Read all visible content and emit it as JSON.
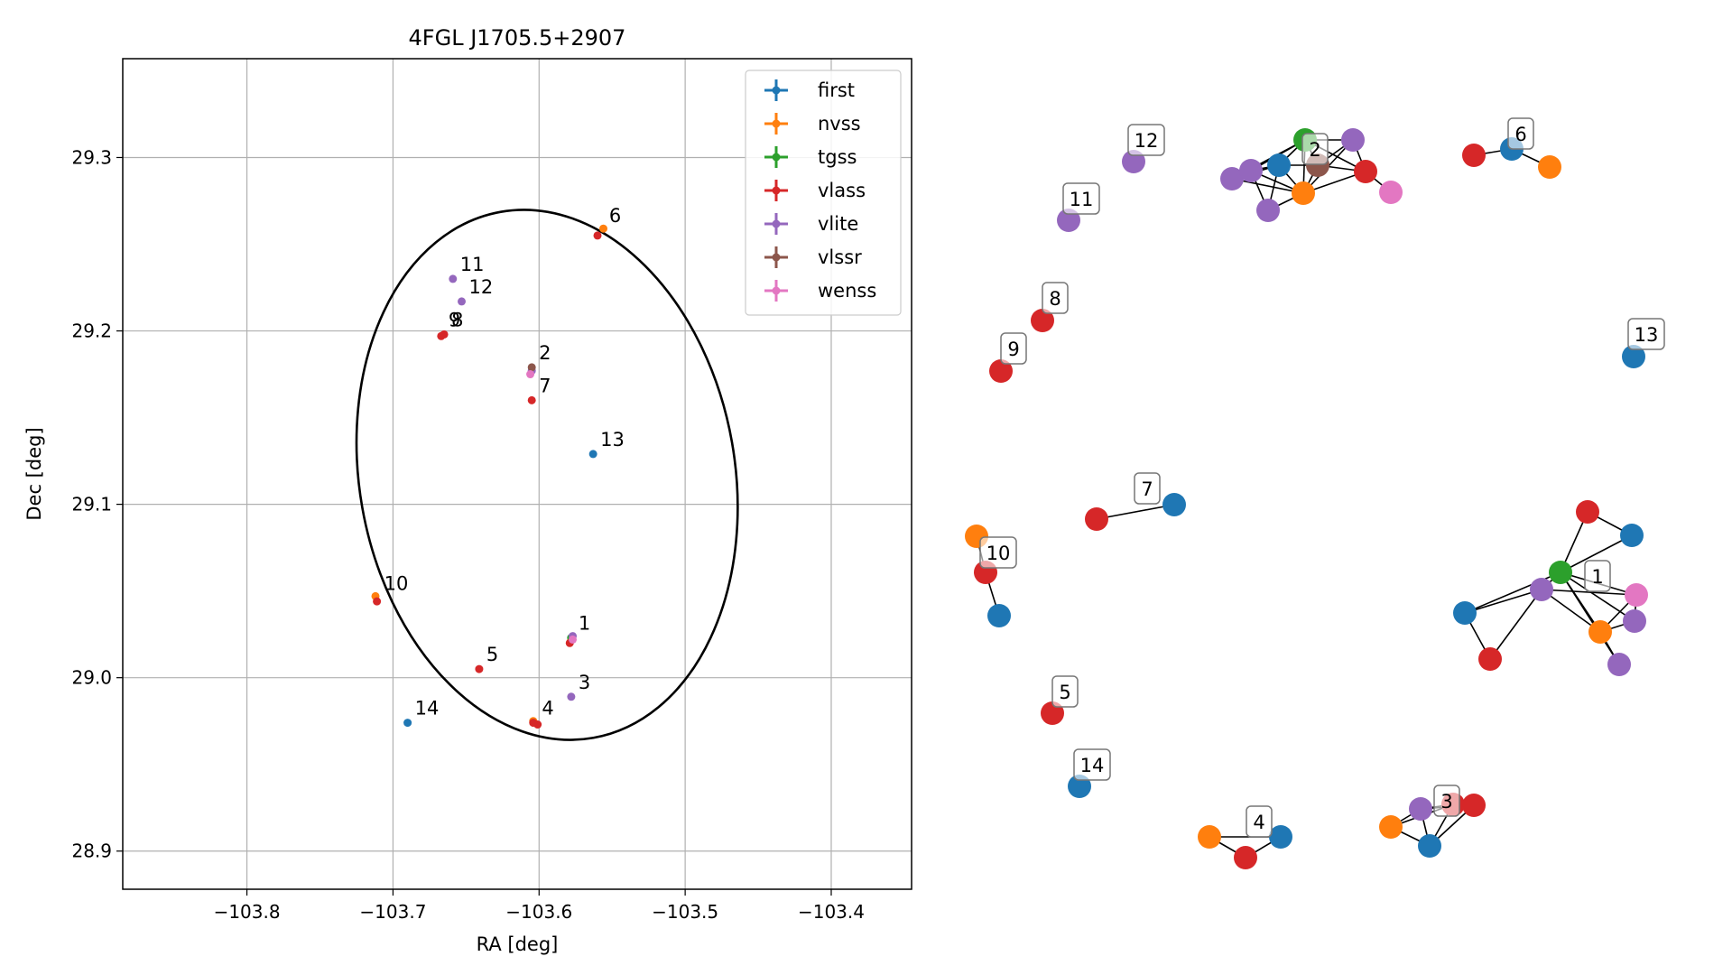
{
  "chart_data": [
    {
      "type": "scatter",
      "title": "4FGL J1705.5+2907",
      "xlabel": "RA [deg]",
      "ylabel": "Dec [deg]",
      "xlim": [
        -103.885,
        -103.345
      ],
      "ylim": [
        28.878,
        29.357
      ],
      "xticks": [
        -103.8,
        -103.7,
        -103.6,
        -103.5,
        -103.4
      ],
      "xtick_labels": [
        "−103.8",
        "−103.7",
        "−103.6",
        "−103.5",
        "−103.4"
      ],
      "yticks": [
        28.9,
        29.0,
        29.1,
        29.2,
        29.3
      ],
      "ytick_labels": [
        "28.9",
        "29.0",
        "29.1",
        "29.2",
        "29.3"
      ],
      "grid": true,
      "legend_position": "top-right",
      "colors": {
        "first": "#1f77b4",
        "nvss": "#ff7f0e",
        "tgss": "#2ca02c",
        "vlass": "#d62728",
        "vlite": "#9467bd",
        "vlssr": "#8c564b",
        "wenss": "#e377c2"
      },
      "series": [
        {
          "name": "first",
          "points": [
            [
              -103.563,
              29.129
            ],
            [
              -103.69,
              28.974
            ],
            [
              -103.578,
              29.023
            ]
          ]
        },
        {
          "name": "nvss",
          "points": [
            [
              -103.556,
              29.259
            ],
            [
              -103.712,
              29.047
            ],
            [
              -103.604,
              28.975
            ],
            [
              -103.578,
              29.022
            ]
          ]
        },
        {
          "name": "tgss",
          "points": [
            [
              -103.578,
              29.023
            ]
          ]
        },
        {
          "name": "vlass",
          "points": [
            [
              -103.56,
              29.255
            ],
            [
              -103.605,
              29.16
            ],
            [
              -103.665,
              29.198
            ],
            [
              -103.667,
              29.197
            ],
            [
              -103.711,
              29.044
            ],
            [
              -103.641,
              29.005
            ],
            [
              -103.579,
              29.02
            ],
            [
              -103.601,
              28.973
            ],
            [
              -103.604,
              28.974
            ]
          ]
        },
        {
          "name": "vlite",
          "points": [
            [
              -103.659,
              29.23
            ],
            [
              -103.653,
              29.217
            ],
            [
              -103.605,
              29.177
            ],
            [
              -103.578,
              28.989
            ],
            [
              -103.577,
              29.024
            ]
          ]
        },
        {
          "name": "vlssr",
          "points": [
            [
              -103.605,
              29.179
            ]
          ]
        },
        {
          "name": "wenss",
          "points": [
            [
              -103.606,
              29.175
            ],
            [
              -103.577,
              29.022
            ]
          ]
        }
      ],
      "annotations": [
        {
          "text": "1",
          "x": -103.578,
          "y": 29.023
        },
        {
          "text": "2",
          "x": -103.605,
          "y": 29.179
        },
        {
          "text": "3",
          "x": -103.578,
          "y": 28.989
        },
        {
          "text": "4",
          "x": -103.603,
          "y": 28.974
        },
        {
          "text": "5",
          "x": -103.641,
          "y": 29.005
        },
        {
          "text": "6",
          "x": -103.557,
          "y": 29.258
        },
        {
          "text": "7",
          "x": -103.605,
          "y": 29.16
        },
        {
          "text": "8",
          "x": -103.665,
          "y": 29.198
        },
        {
          "text": "9",
          "x": -103.667,
          "y": 29.198
        },
        {
          "text": "10",
          "x": -103.711,
          "y": 29.046
        },
        {
          "text": "11",
          "x": -103.659,
          "y": 29.23
        },
        {
          "text": "12",
          "x": -103.653,
          "y": 29.217
        },
        {
          "text": "13",
          "x": -103.563,
          "y": 29.129
        },
        {
          "text": "14",
          "x": -103.69,
          "y": 28.974
        }
      ],
      "ellipse": {
        "ra_center": -103.5945,
        "dec_center": 29.117,
        "ra_half_width": 0.1285,
        "dec_half_height": 0.154,
        "tilt_deg": -10
      }
    },
    {
      "type": "network",
      "node_color_key": "catalogue",
      "groups": [
        {
          "label": "12",
          "nodes": [
            "vlite"
          ]
        },
        {
          "label": "11",
          "nodes": [
            "vlite"
          ]
        },
        {
          "label": "2",
          "nodes": [
            "vlite",
            "vlite",
            "first",
            "tgss",
            "vlssr",
            "vlite",
            "vlass",
            "wenss",
            "nvss",
            "vlite"
          ]
        },
        {
          "label": "6",
          "nodes": [
            "vlass",
            "first",
            "nvss"
          ]
        },
        {
          "label": "8",
          "nodes": [
            "vlass"
          ]
        },
        {
          "label": "9",
          "nodes": [
            "vlass"
          ]
        },
        {
          "label": "13",
          "nodes": [
            "first"
          ]
        },
        {
          "label": "7",
          "nodes": [
            "vlass",
            "first"
          ]
        },
        {
          "label": "10",
          "nodes": [
            "nvss",
            "vlass",
            "first"
          ]
        },
        {
          "label": "1",
          "nodes": [
            "vlass",
            "first",
            "tgss",
            "vlite",
            "wenss",
            "vlite",
            "first",
            "nvss",
            "vlass",
            "vlite"
          ]
        },
        {
          "label": "5",
          "nodes": [
            "vlass"
          ]
        },
        {
          "label": "14",
          "nodes": [
            "first"
          ]
        },
        {
          "label": "4",
          "nodes": [
            "nvss",
            "vlass",
            "first"
          ]
        },
        {
          "label": "3",
          "nodes": [
            "vlite",
            "vlass",
            "nvss",
            "vlass",
            "first"
          ]
        }
      ]
    }
  ]
}
